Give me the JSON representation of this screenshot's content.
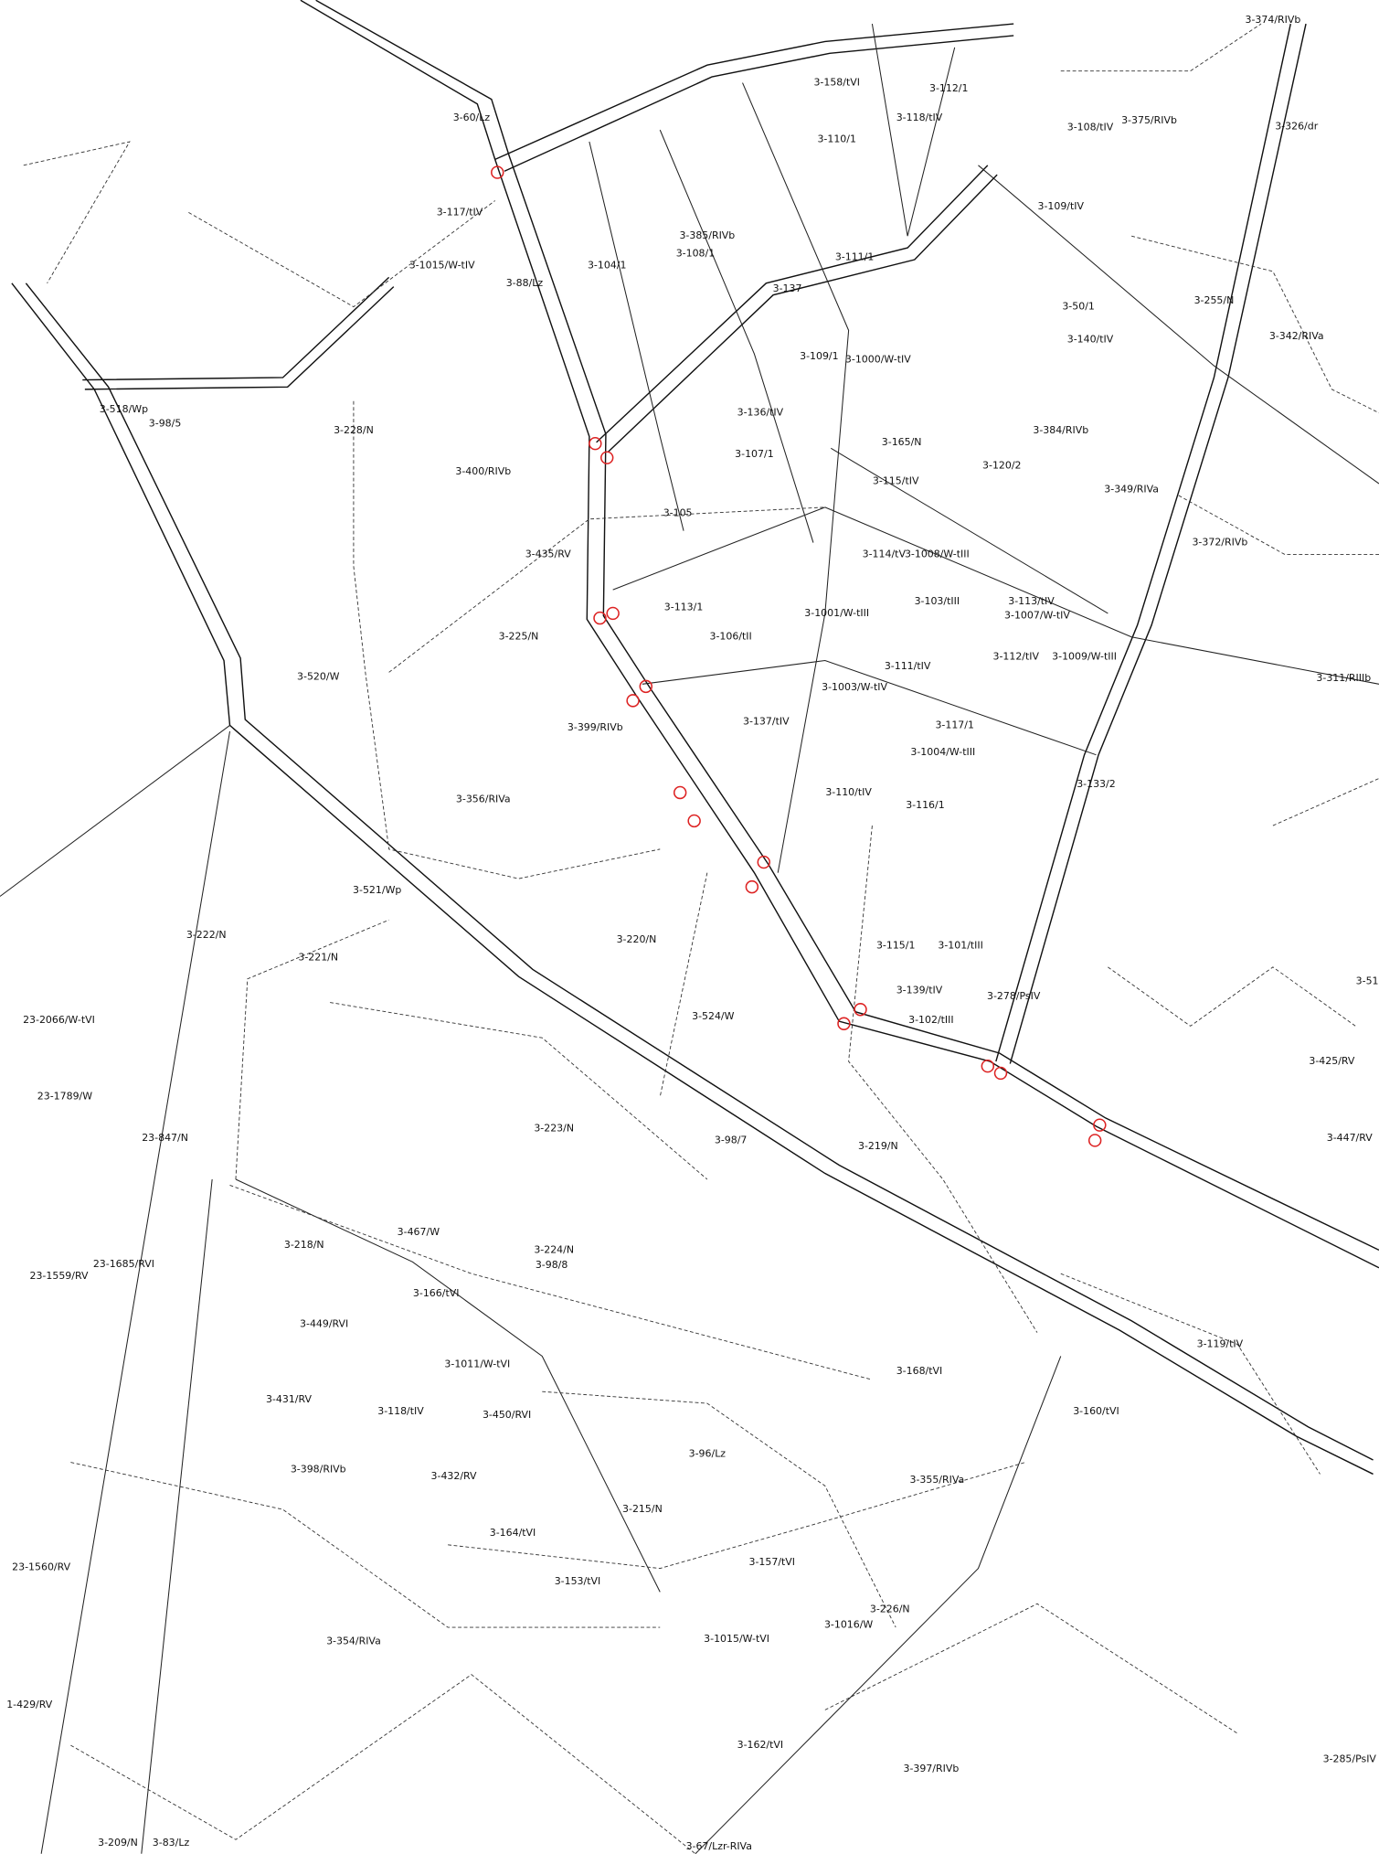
{
  "parcels": [
    "3-60/Lz",
    "3-117/tIV",
    "3-1015/W-tIV",
    "3-88/Lz",
    "3-104/1",
    "3-385/RIVb",
    "3-108/1",
    "3-118/tIV",
    "3-112/1",
    "3-158/tVI",
    "3-110/1",
    "3-111/1",
    "3-137",
    "3-109/1",
    "3-1000/W-tIV",
    "3-136/tIV",
    "3-107/1",
    "3-105",
    "3-228/N",
    "3-400/RIVb",
    "3-435/RV",
    "3-225/N",
    "3-113/1",
    "3-106/tII",
    "3-1001/W-tIII",
    "3-114/tV",
    "3-1008/W-tIII",
    "3-115/tIV",
    "3-120/2",
    "3-165/N",
    "3-384/RIVb",
    "3-349/RIVa",
    "3-372/RIVb",
    "3-50/1",
    "3-140/tIV",
    "3-255/N",
    "3-342/RIVa",
    "3-109/tIV",
    "3-108/tIV",
    "3-375/RIVb",
    "3-374/RIVb",
    "3-326/dr",
    "3-103/tIII",
    "3-113/tIV",
    "3-1007/W-tIV",
    "3-112/tIV",
    "3-1009/W-tIII",
    "3-311/RIIIb",
    "3-111/tIV",
    "3-1003/W-tIV",
    "3-117/1",
    "3-1004/W-tIII",
    "3-137/tIV",
    "3-399/RIVb",
    "3-356/RIVa",
    "3-110/tIV",
    "3-116/1",
    "3-133/2",
    "3-520/W",
    "3-518/Wp",
    "3-98/5",
    "3-521/Wp",
    "3-222/N",
    "3-221/N",
    "3-220/N",
    "3-524/W",
    "3-278/PsIV",
    "3-102/tIII",
    "3-139/tIV",
    "3-101/tIII",
    "3-115/1",
    "3-223/N",
    "3-98/7",
    "3-219/N",
    "3-425/RV",
    "3-447/RV",
    "3-51",
    "23-2066/W-tVI",
    "23-1789/W",
    "23-847/N",
    "23-1685/RVI",
    "23-1559/RV",
    "3-218/N",
    "3-467/W",
    "3-224/N",
    "3-98/8",
    "3-166/tVI",
    "3-449/RVI",
    "3-1011/W-tVI",
    "3-431/RV",
    "3-118/tIV",
    "3-450/RVI",
    "3-398/RIVb",
    "3-432/RV",
    "3-96/Lz",
    "3-168/tVI",
    "3-160/tVI",
    "3-119/tIV",
    "3-355/RIVa",
    "3-215/N",
    "3-164/tVI",
    "3-157/tVI",
    "3-153/tVI",
    "3-226/N",
    "3-1015/W-tVI",
    "3-1016/W",
    "3-354/RIVa",
    "23-1560/RV",
    "1-429/RV",
    "3-162/tVI",
    "3-397/RIVb",
    "3-285/PsIV",
    "3-67/Lzr-RIVa",
    "3-209/N",
    "3-83/Lz"
  ]
}
